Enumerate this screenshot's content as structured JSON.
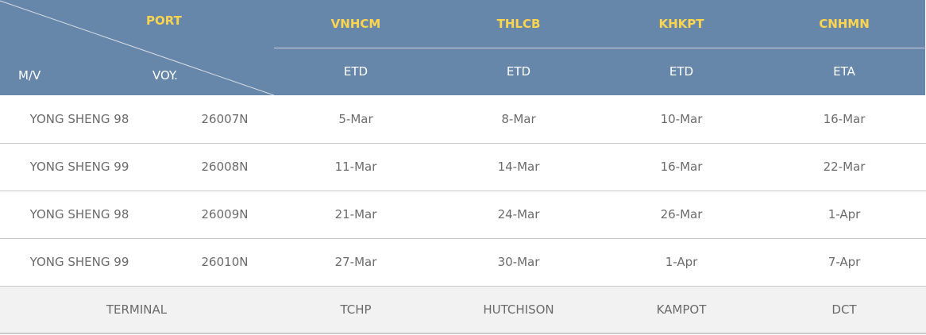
{
  "header": {
    "port_label": "PORT",
    "vessel_label": "M/V",
    "voyage_label": "VOY.",
    "ports": [
      {
        "code": "VNHCM",
        "event": "ETD"
      },
      {
        "code": "THLCB",
        "event": "ETD"
      },
      {
        "code": "KHKPT",
        "event": "ETD"
      },
      {
        "code": "CNHMN",
        "event": "ETA"
      }
    ]
  },
  "rows": [
    {
      "vessel": "YONG SHENG 98",
      "voyage": "26007N",
      "dates": [
        "5-Mar",
        "8-Mar",
        "10-Mar",
        "16-Mar"
      ]
    },
    {
      "vessel": "YONG SHENG 99",
      "voyage": "26008N",
      "dates": [
        "11-Mar",
        "14-Mar",
        "16-Mar",
        "22-Mar"
      ]
    },
    {
      "vessel": "YONG SHENG 98",
      "voyage": "26009N",
      "dates": [
        "21-Mar",
        "24-Mar",
        "26-Mar",
        "1-Apr"
      ]
    },
    {
      "vessel": "YONG SHENG 99",
      "voyage": "26010N",
      "dates": [
        "27-Mar",
        "30-Mar",
        "1-Apr",
        "7-Apr"
      ]
    }
  ],
  "terminal": {
    "label": "TERMINAL",
    "values": [
      "TCHP",
      "HUTCHISON",
      "KAMPOT",
      "DCT"
    ]
  },
  "colors": {
    "header_bg": "#6787aa",
    "port_code": "#ffd54f",
    "terminal_bg": "#f2f2f2"
  }
}
